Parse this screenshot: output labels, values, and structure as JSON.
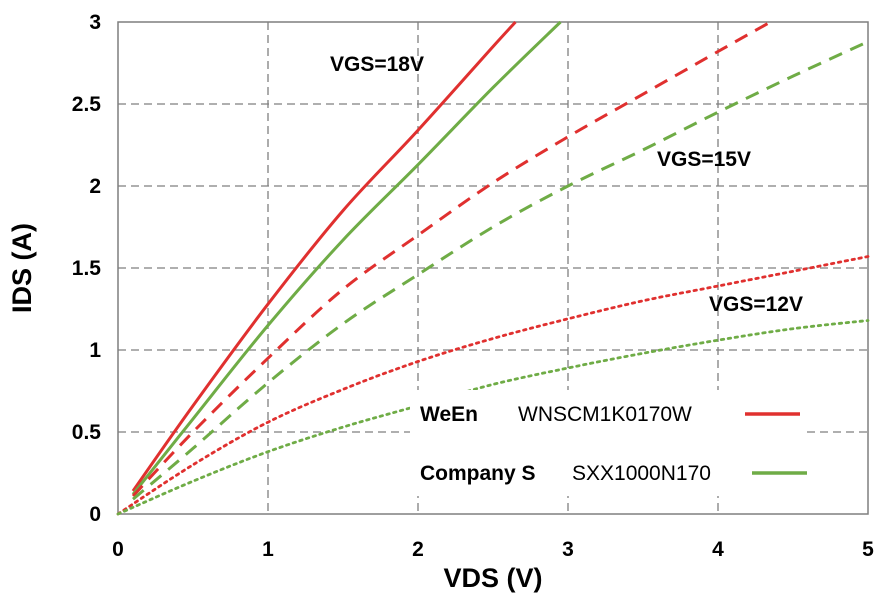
{
  "chart_data": {
    "type": "line",
    "xlabel": "VDS (V)",
    "ylabel": "IDS (A)",
    "xlim": [
      0,
      5
    ],
    "ylim": [
      0,
      3
    ],
    "x_ticks": [
      "0",
      "1",
      "2",
      "3",
      "4",
      "5"
    ],
    "y_ticks": [
      "0",
      "0.5",
      "1",
      "1.5",
      "2",
      "2.5",
      "3"
    ],
    "grid": true,
    "colors": {
      "weEn": "#e0302f",
      "companyS": "#6fac46"
    },
    "annotations": [
      {
        "id": "vgs18",
        "text": "VGS=18V"
      },
      {
        "id": "vgs15",
        "text": "VGS=15V"
      },
      {
        "id": "vgs12",
        "text": "VGS=12V"
      }
    ],
    "legend": [
      {
        "brand": "WeEn",
        "part": "WNSCM1K0170W",
        "color": "#e0302f"
      },
      {
        "brand": "Company S",
        "part": "SXX1000N170",
        "color": "#6fac46"
      }
    ],
    "series": [
      {
        "name": "WeEn VGS=18V",
        "maker": "WeEn",
        "vgs": "18V",
        "style": "solid",
        "color": "#e0302f",
        "x": [
          0.1,
          0.5,
          1.0,
          1.5,
          2.0,
          2.5,
          2.65
        ],
        "y": [
          0.14,
          0.66,
          1.28,
          1.85,
          2.34,
          2.85,
          3.0
        ]
      },
      {
        "name": "Company S VGS=18V",
        "maker": "Company S",
        "vgs": "18V",
        "style": "solid",
        "color": "#6fac46",
        "x": [
          0.1,
          0.5,
          1.0,
          1.5,
          2.0,
          2.5,
          2.95
        ],
        "y": [
          0.12,
          0.58,
          1.15,
          1.67,
          2.13,
          2.6,
          3.0
        ]
      },
      {
        "name": "WeEn VGS=15V",
        "maker": "WeEn",
        "vgs": "15V",
        "style": "dashed",
        "color": "#e0302f",
        "x": [
          0.1,
          0.5,
          1.0,
          1.5,
          2.0,
          2.5,
          3.0,
          3.5,
          4.0,
          4.35
        ],
        "y": [
          0.11,
          0.5,
          0.95,
          1.37,
          1.7,
          2.02,
          2.3,
          2.56,
          2.82,
          3.0
        ]
      },
      {
        "name": "Company S VGS=15V",
        "maker": "Company S",
        "vgs": "15V",
        "style": "dashed",
        "color": "#6fac46",
        "x": [
          0.1,
          0.5,
          1.0,
          1.5,
          2.0,
          2.5,
          3.0,
          3.5,
          4.0,
          4.5,
          5.0
        ],
        "y": [
          0.09,
          0.4,
          0.8,
          1.16,
          1.46,
          1.75,
          2.0,
          2.22,
          2.45,
          2.67,
          2.88
        ]
      },
      {
        "name": "WeEn VGS=12V",
        "maker": "WeEn",
        "vgs": "12V",
        "style": "dotted",
        "color": "#e0302f",
        "x": [
          0.0,
          0.5,
          1.0,
          1.5,
          2.0,
          2.5,
          3.0,
          3.5,
          4.0,
          4.5,
          5.0
        ],
        "y": [
          0.0,
          0.3,
          0.56,
          0.76,
          0.93,
          1.07,
          1.19,
          1.3,
          1.39,
          1.48,
          1.57
        ]
      },
      {
        "name": "Company S VGS=12V",
        "maker": "Company S",
        "vgs": "12V",
        "style": "dotted",
        "color": "#6fac46",
        "x": [
          0.0,
          0.5,
          1.0,
          1.5,
          2.0,
          2.5,
          3.0,
          3.5,
          4.0,
          4.5,
          5.0
        ],
        "y": [
          0.0,
          0.2,
          0.38,
          0.53,
          0.66,
          0.79,
          0.89,
          0.98,
          1.06,
          1.13,
          1.18
        ]
      }
    ]
  }
}
